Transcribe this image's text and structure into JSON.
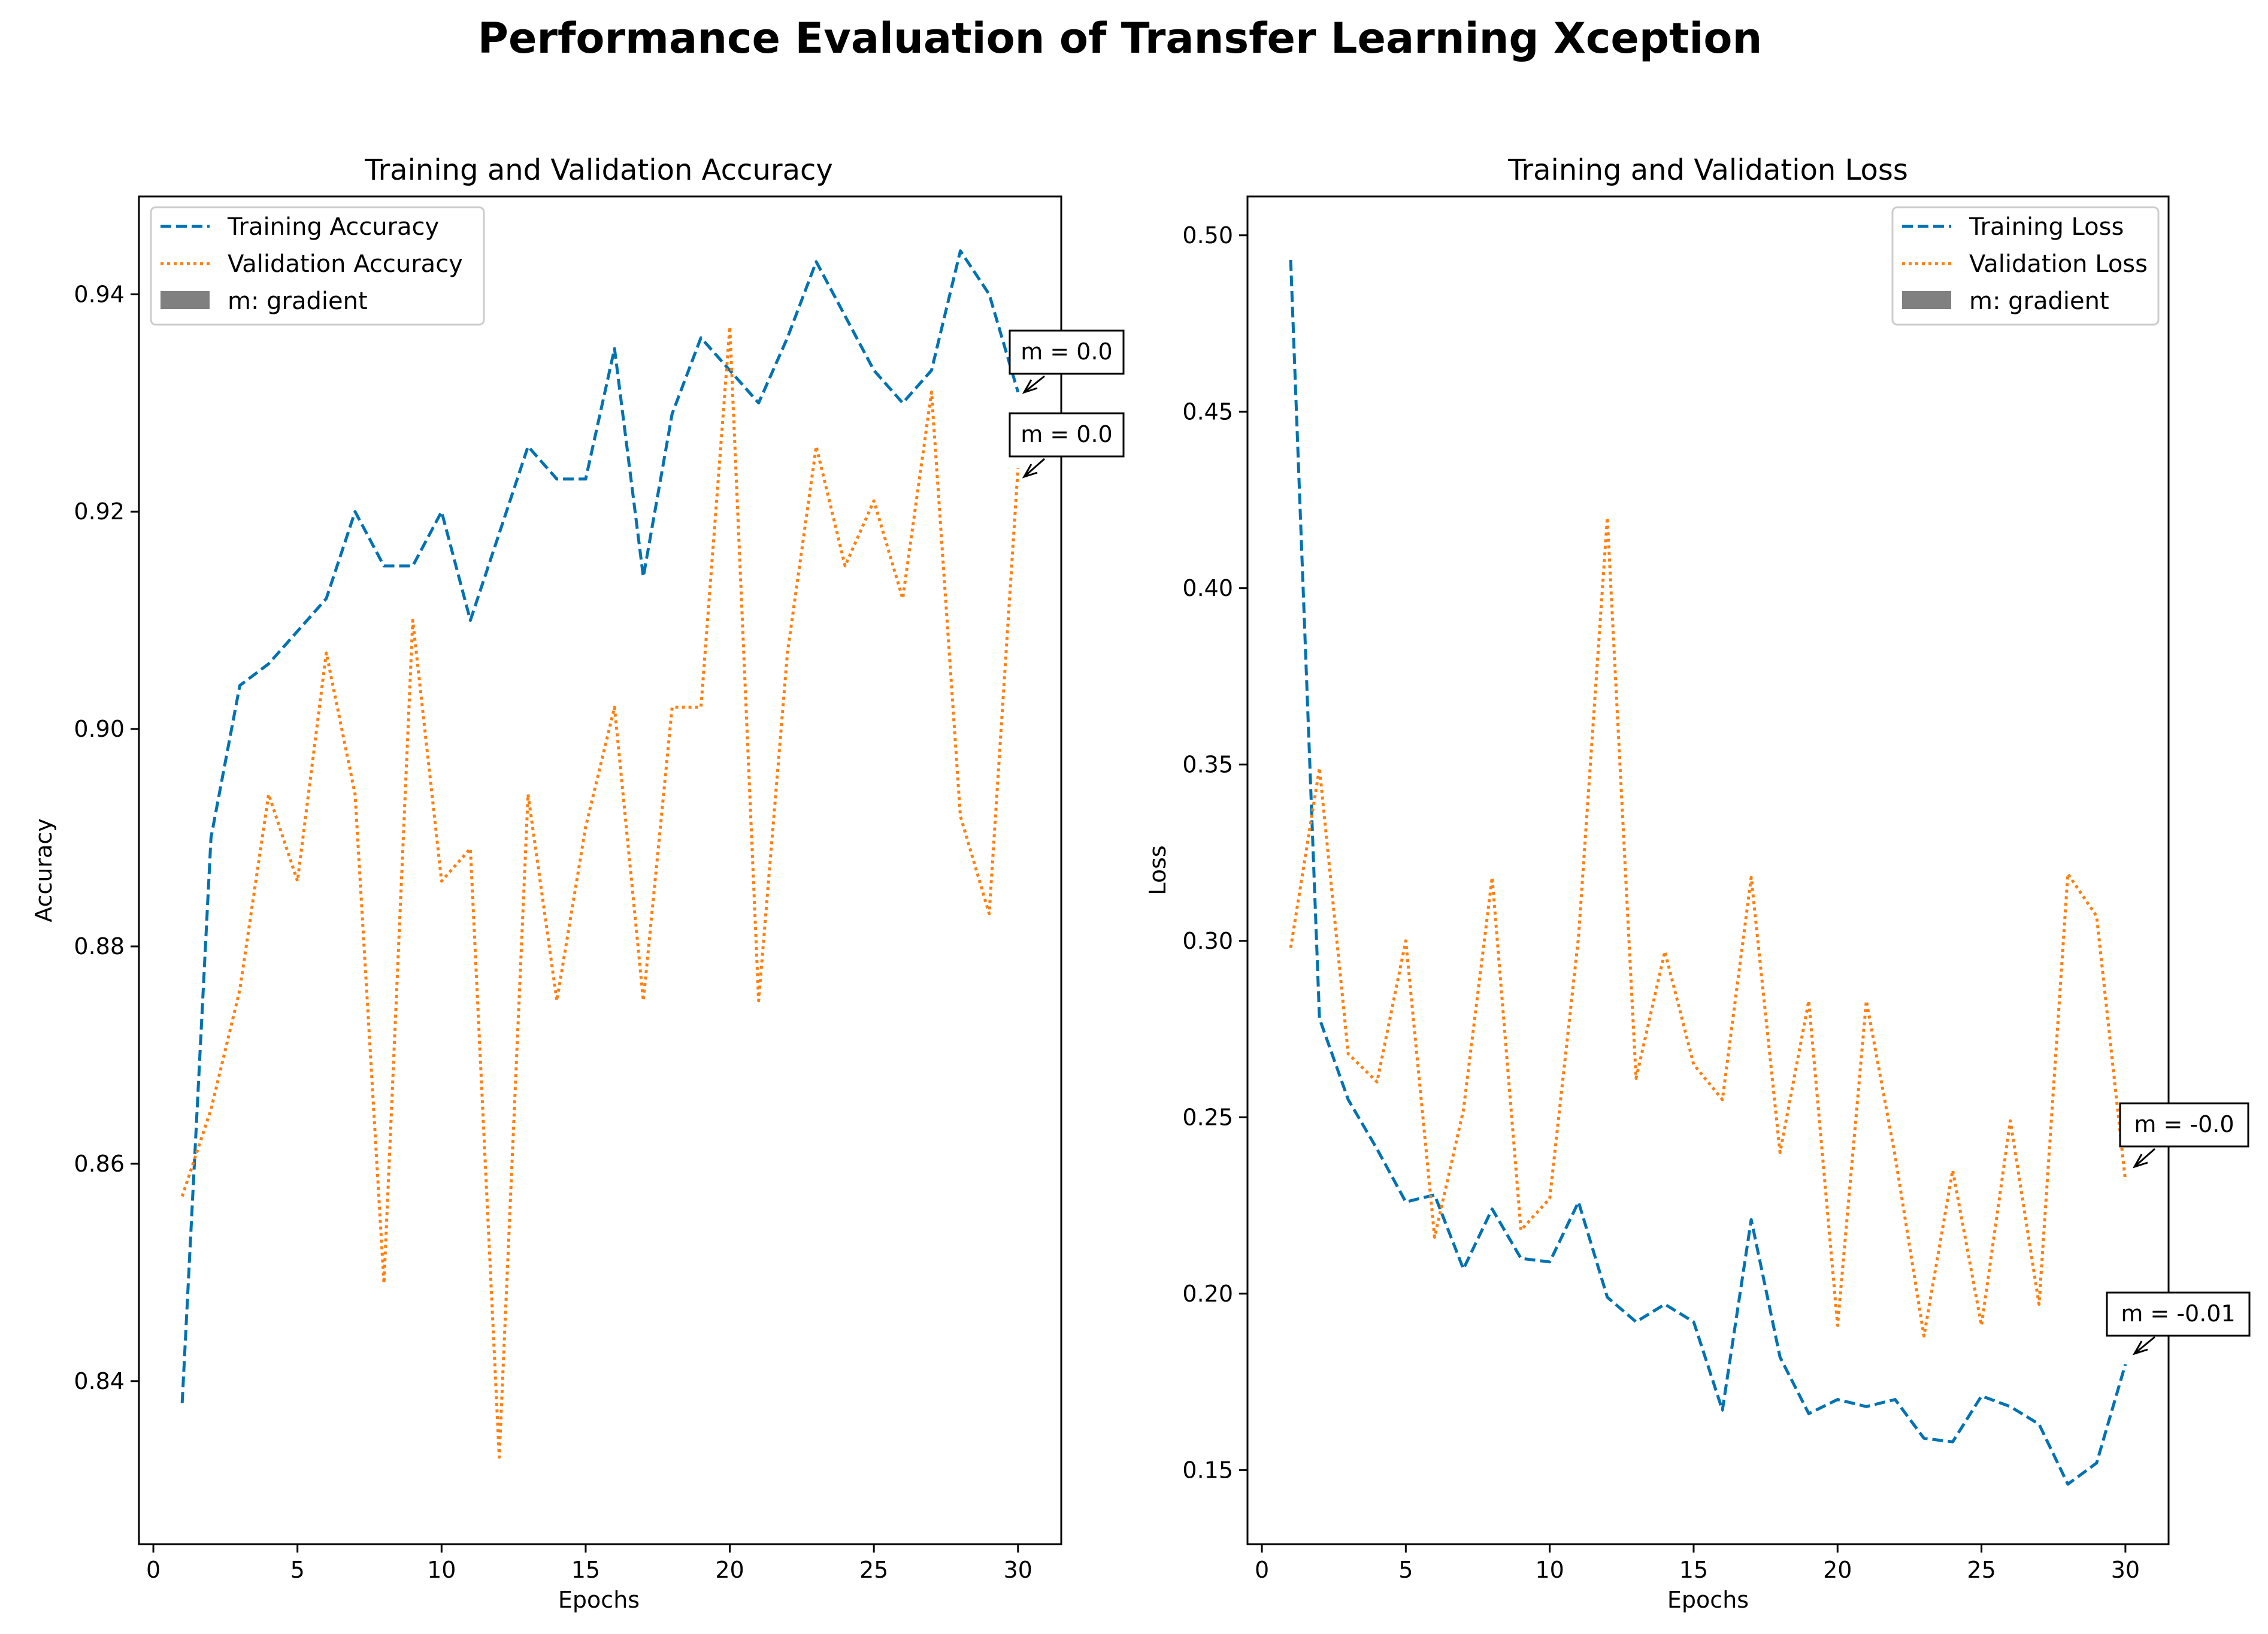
{
  "title": "Performance Evaluation of Transfer Learning Xception",
  "colors": {
    "training": "#0072b2",
    "validation": "#ff7f0e",
    "gradient_patch": "#808080"
  },
  "chart_data": [
    {
      "type": "line",
      "title": "Training and Validation Accuracy",
      "xlabel": "Epochs",
      "ylabel": "Accuracy",
      "xlim": [
        -0.5,
        31.5
      ],
      "ylim": [
        0.825,
        0.949
      ],
      "xticks": [
        0,
        5,
        10,
        15,
        20,
        25,
        30
      ],
      "xtick_labels": [
        "0",
        "5",
        "10",
        "15",
        "20",
        "25",
        "30"
      ],
      "yticks": [
        0.84,
        0.86,
        0.88,
        0.9,
        0.92,
        0.94
      ],
      "ytick_labels": [
        "0.84",
        "0.86",
        "0.88",
        "0.90",
        "0.92",
        "0.94"
      ],
      "legend_position": "top-left",
      "legend": [
        "Training Accuracy",
        "Validation Accuracy",
        "m: gradient"
      ],
      "x": [
        1,
        2,
        3,
        4,
        5,
        6,
        7,
        8,
        9,
        10,
        11,
        12,
        13,
        14,
        15,
        16,
        17,
        18,
        19,
        20,
        21,
        22,
        23,
        24,
        25,
        26,
        27,
        28,
        29,
        30
      ],
      "series": [
        {
          "name": "Training Accuracy",
          "style": "dashed",
          "values": [
            0.838,
            0.89,
            0.904,
            0.906,
            0.909,
            0.912,
            0.92,
            0.915,
            0.915,
            0.92,
            0.91,
            0.918,
            0.926,
            0.923,
            0.923,
            0.935,
            0.914,
            0.929,
            0.936,
            0.933,
            0.93,
            0.936,
            0.943,
            0.938,
            0.933,
            0.93,
            0.933,
            0.944,
            0.94,
            0.931
          ]
        },
        {
          "name": "Validation Accuracy",
          "style": "dotted",
          "values": [
            0.857,
            0.865,
            0.876,
            0.894,
            0.886,
            0.907,
            0.894,
            0.849,
            0.91,
            0.886,
            0.889,
            0.833,
            0.894,
            0.875,
            0.891,
            0.902,
            0.875,
            0.902,
            0.902,
            0.937,
            0.875,
            0.907,
            0.926,
            0.915,
            0.921,
            0.912,
            0.931,
            0.892,
            0.883,
            0.924
          ]
        }
      ],
      "annotations": [
        "m = 0.0",
        "m = 0.0"
      ]
    },
    {
      "type": "line",
      "title": "Training and Validation Loss",
      "xlabel": "Epochs",
      "ylabel": "Loss",
      "xlim": [
        -0.5,
        31.5
      ],
      "ylim": [
        0.129,
        0.511
      ],
      "xticks": [
        0,
        5,
        10,
        15,
        20,
        25,
        30
      ],
      "xtick_labels": [
        "0",
        "5",
        "10",
        "15",
        "20",
        "25",
        "30"
      ],
      "yticks": [
        0.15,
        0.2,
        0.25,
        0.3,
        0.35,
        0.4,
        0.45,
        0.5
      ],
      "ytick_labels": [
        "0.15",
        "0.20",
        "0.25",
        "0.30",
        "0.35",
        "0.40",
        "0.45",
        "0.50"
      ],
      "legend_position": "top-right",
      "legend": [
        "Training Loss",
        "Validation Loss",
        "m: gradient"
      ],
      "x": [
        1,
        2,
        3,
        4,
        5,
        6,
        7,
        8,
        9,
        10,
        11,
        12,
        13,
        14,
        15,
        16,
        17,
        18,
        19,
        20,
        21,
        22,
        23,
        24,
        25,
        26,
        27,
        28,
        29,
        30
      ],
      "series": [
        {
          "name": "Training Loss",
          "style": "dashed",
          "values": [
            0.493,
            0.278,
            0.255,
            0.241,
            0.226,
            0.228,
            0.207,
            0.224,
            0.21,
            0.209,
            0.226,
            0.199,
            0.192,
            0.197,
            0.192,
            0.167,
            0.221,
            0.182,
            0.166,
            0.17,
            0.168,
            0.17,
            0.159,
            0.158,
            0.171,
            0.168,
            0.163,
            0.146,
            0.152,
            0.18
          ]
        },
        {
          "name": "Validation Loss",
          "style": "dotted",
          "values": [
            0.298,
            0.349,
            0.268,
            0.26,
            0.3,
            0.216,
            0.252,
            0.318,
            0.218,
            0.227,
            0.301,
            0.42,
            0.261,
            0.297,
            0.265,
            0.255,
            0.318,
            0.24,
            0.283,
            0.191,
            0.283,
            0.239,
            0.188,
            0.235,
            0.191,
            0.249,
            0.197,
            0.319,
            0.307,
            0.232
          ]
        }
      ],
      "annotations": [
        "m = -0.0",
        "m = -0.01"
      ]
    }
  ]
}
